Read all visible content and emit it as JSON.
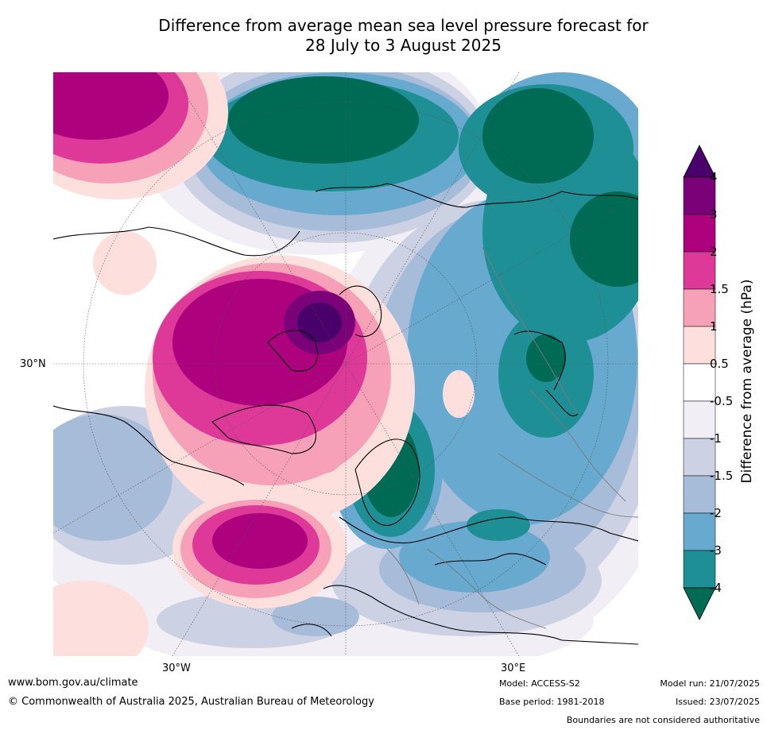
{
  "title": {
    "line1": "Difference from average mean sea level pressure forecast for",
    "line2": "28 July to 3 August 2025"
  },
  "map": {
    "lat_labels": [
      "30°N"
    ],
    "lon_labels": [
      "30°W",
      "30°E"
    ],
    "colors": {
      "neg4": "#006b55",
      "neg3": "#1f8f96",
      "neg2": "#68a9cf",
      "neg15": "#a7bcd9",
      "neg1": "#cdd1e4",
      "neg05": "#f1eef5",
      "zero": "#ffffff",
      "pos05": "#fde0dd",
      "pos1": "#f7a1b9",
      "pos15": "#de3898",
      "pos2": "#ae017e",
      "pos3": "#7a0177",
      "pos4": "#49006a"
    }
  },
  "colorbar": {
    "label": "Difference from average (hPa)",
    "ticks": [
      "4",
      "3",
      "2",
      "1.5",
      "1",
      "0.5",
      "-0.5",
      "-1",
      "-1.5",
      "-2",
      "-3",
      "-4"
    ],
    "colors": [
      "#49006a",
      "#7a0177",
      "#ae017e",
      "#de3898",
      "#f7a1b9",
      "#fde0dd",
      "#ffffff",
      "#f1eef5",
      "#cdd1e4",
      "#a7bcd9",
      "#68a9cf",
      "#1f8f96",
      "#006b55"
    ]
  },
  "footer": {
    "website": "www.bom.gov.au/climate",
    "copyright": "© Commonwealth of Australia 2025, Australian Bureau of Meteorology",
    "model": "Model: ACCESS-S2",
    "base_period": "Base period: 1981-2018",
    "model_run": "Model run: 21/07/2025",
    "issued": "Issued: 23/07/2025",
    "disclaimer": "Boundaries are not considered authoritative"
  }
}
